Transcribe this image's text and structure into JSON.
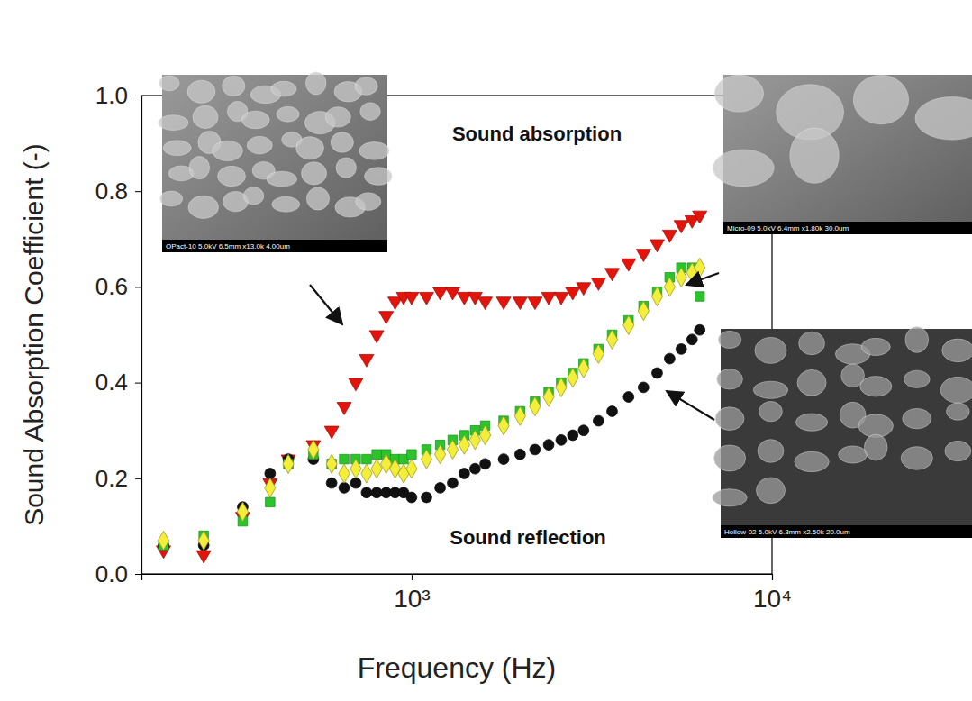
{
  "chart_data": {
    "type": "scatter",
    "x_label": "Frequency (Hz)",
    "y_label": "Sound Absorption Coefficient (-)",
    "log": "x",
    "grid": false,
    "xlim": [
      178,
      10000
    ],
    "xticks": [
      {
        "value": 1000,
        "label": "10³"
      },
      {
        "value": 10000,
        "label": "10⁴"
      }
    ],
    "ylim": [
      0,
      1
    ],
    "yticks": [
      {
        "value": 0,
        "label": "0.0"
      },
      0.2,
      0.4,
      0.6,
      0.8,
      {
        "value": 1,
        "label": "1.0"
      }
    ],
    "annotations": [
      "Sound absorption",
      "Sound reflection",
      "OPact-10 5.0kV 6.5mm x13.0k 4.00um",
      "Micro-09 5.0kV 6.4mm x1.80k 30.0um",
      "Hollow-02 5.0kV 6.3mm x2.50k 20.0um"
    ],
    "x": [
      205,
      265,
      340,
      405,
      455,
      534,
      600,
      650,
      700,
      750,
      800,
      850,
      900,
      950,
      1000,
      1100,
      1200,
      1300,
      1400,
      1500,
      1600,
      1800,
      2000,
      2200,
      2400,
      2600,
      2800,
      3000,
      3300,
      3600,
      4000,
      4400,
      4800,
      5200,
      5600,
      6000,
      6300
    ],
    "series": [
      {
        "color": "#e3140c",
        "marker": "triangle-down",
        "values": [
          0.05,
          0.04,
          0.12,
          0.19,
          0.24,
          0.27,
          0.3,
          0.35,
          0.4,
          0.45,
          0.5,
          0.54,
          0.57,
          0.58,
          0.58,
          0.58,
          0.59,
          0.59,
          0.58,
          0.58,
          0.57,
          0.57,
          0.57,
          0.57,
          0.58,
          0.58,
          0.59,
          0.6,
          0.61,
          0.63,
          0.65,
          0.67,
          0.69,
          0.71,
          0.73,
          0.74,
          0.75
        ]
      },
      {
        "color": "#111111",
        "marker": "circle",
        "values": [
          0.06,
          0.06,
          0.14,
          0.21,
          0.24,
          0.24,
          0.19,
          0.18,
          0.19,
          0.17,
          0.17,
          0.17,
          0.17,
          0.17,
          0.16,
          0.16,
          0.18,
          0.19,
          0.21,
          0.22,
          0.23,
          0.24,
          0.25,
          0.26,
          0.27,
          0.28,
          0.29,
          0.3,
          0.32,
          0.34,
          0.37,
          0.39,
          0.42,
          0.45,
          0.47,
          0.49,
          0.51
        ]
      },
      {
        "color": "#2cc42c",
        "marker": "square",
        "values": [
          0.06,
          0.08,
          0.11,
          0.15,
          0.23,
          0.25,
          0.23,
          0.24,
          0.24,
          0.24,
          0.25,
          0.25,
          0.24,
          0.24,
          0.25,
          0.26,
          0.27,
          0.28,
          0.29,
          0.3,
          0.31,
          0.32,
          0.34,
          0.36,
          0.38,
          0.4,
          0.42,
          0.44,
          0.47,
          0.5,
          0.53,
          0.56,
          0.59,
          0.62,
          0.64,
          0.64,
          0.58
        ]
      },
      {
        "color": "#f2ee3a",
        "marker": "diamond",
        "values": [
          0.07,
          0.07,
          0.13,
          0.18,
          0.23,
          0.26,
          0.23,
          0.21,
          0.22,
          0.21,
          0.22,
          0.23,
          0.22,
          0.21,
          0.22,
          0.24,
          0.25,
          0.26,
          0.27,
          0.28,
          0.29,
          0.31,
          0.33,
          0.35,
          0.37,
          0.39,
          0.41,
          0.43,
          0.46,
          0.49,
          0.52,
          0.55,
          0.58,
          0.6,
          0.62,
          0.63,
          0.64
        ]
      }
    ]
  }
}
